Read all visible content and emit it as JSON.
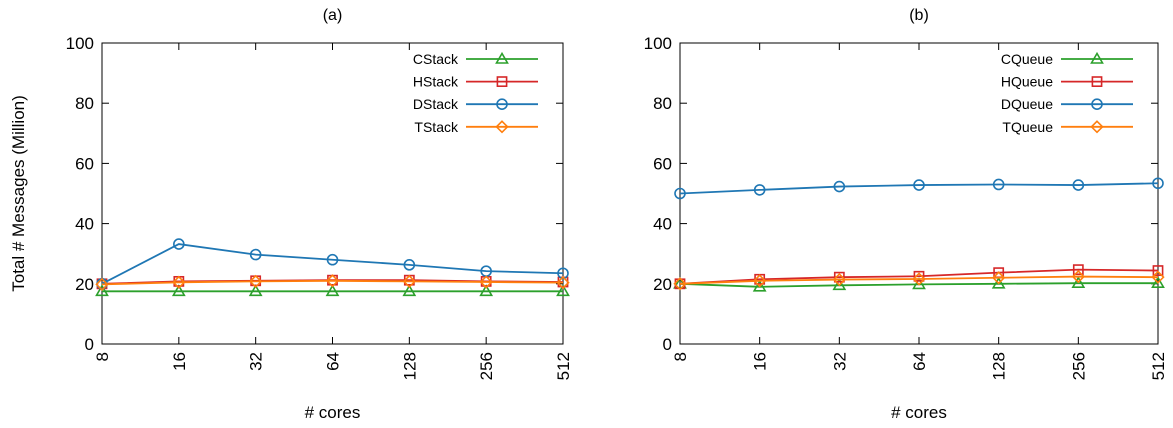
{
  "chart_data": [
    {
      "type": "line",
      "title": "(a)",
      "xlabel": "# cores",
      "ylabel": "Total # Messages (Million)",
      "categories": [
        "8",
        "16",
        "32",
        "64",
        "128",
        "256",
        "512"
      ],
      "ylim": [
        0,
        100
      ],
      "yticks": [
        "0",
        "20",
        "40",
        "60",
        "80",
        "100"
      ],
      "grid": false,
      "legend_position": "top-right",
      "series": [
        {
          "name": "CStack",
          "color": "#2ca02c",
          "marker": "triangle",
          "values": [
            17.5,
            17.5,
            17.5,
            17.5,
            17.5,
            17.5,
            17.5
          ]
        },
        {
          "name": "HStack",
          "color": "#d62728",
          "marker": "square",
          "values": [
            20,
            20.8,
            21,
            21.2,
            21.2,
            20.8,
            20.6
          ]
        },
        {
          "name": "DStack",
          "color": "#1f77b4",
          "marker": "circle",
          "values": [
            20,
            33.2,
            29.7,
            28,
            26.3,
            24.2,
            23.5
          ]
        },
        {
          "name": "TStack",
          "color": "#ff7f0e",
          "marker": "diamond",
          "values": [
            19.8,
            20.5,
            20.8,
            21,
            20.8,
            20.6,
            20.4
          ]
        }
      ]
    },
    {
      "type": "line",
      "title": "(b)",
      "xlabel": "# cores",
      "ylabel": "",
      "categories": [
        "8",
        "16",
        "32",
        "64",
        "128",
        "256",
        "512"
      ],
      "ylim": [
        0,
        100
      ],
      "yticks": [
        "0",
        "20",
        "40",
        "60",
        "80",
        "100"
      ],
      "grid": false,
      "legend_position": "top-right",
      "series": [
        {
          "name": "CQueue",
          "color": "#2ca02c",
          "marker": "triangle",
          "values": [
            20,
            19,
            19.5,
            19.8,
            20,
            20.2,
            20.2
          ]
        },
        {
          "name": "HQueue",
          "color": "#d62728",
          "marker": "square",
          "values": [
            20,
            21.5,
            22.2,
            22.5,
            23.7,
            24.7,
            24.4
          ]
        },
        {
          "name": "DQueue",
          "color": "#1f77b4",
          "marker": "circle",
          "values": [
            50,
            51.2,
            52.3,
            52.8,
            53,
            52.8,
            53.4
          ]
        },
        {
          "name": "TQueue",
          "color": "#ff7f0e",
          "marker": "diamond",
          "values": [
            20,
            21,
            21.4,
            21.6,
            22,
            22.4,
            22.2
          ]
        }
      ]
    }
  ]
}
